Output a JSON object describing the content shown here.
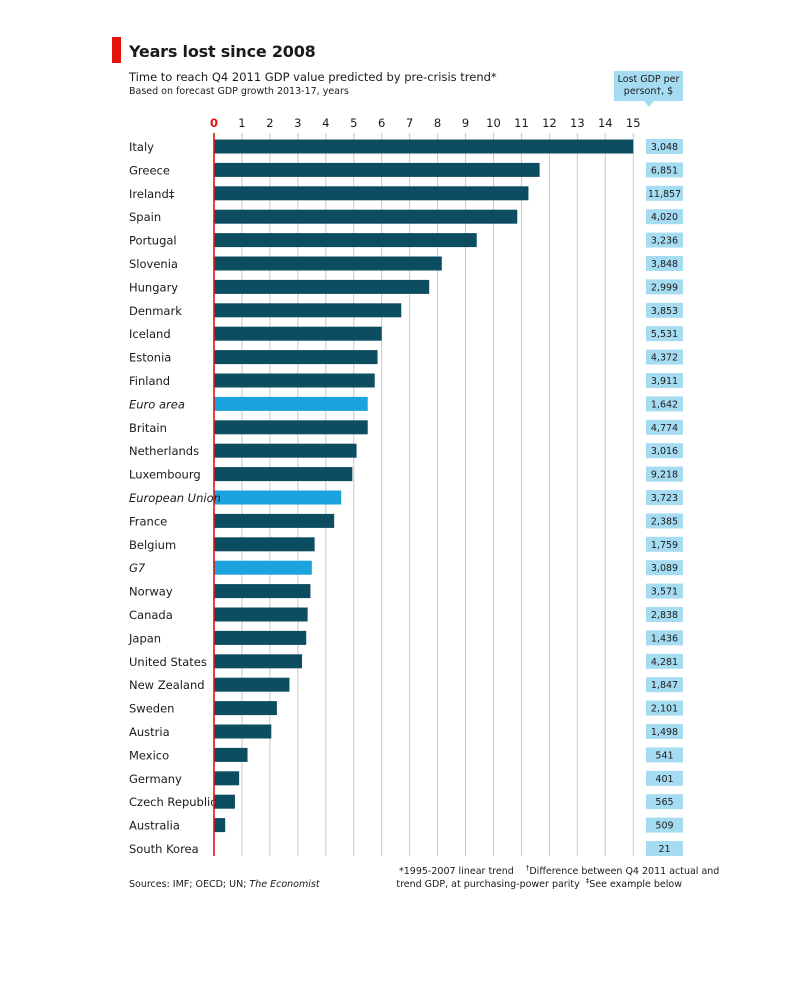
{
  "header": {
    "title": "Years lost since 2008",
    "subtitle": "Time to reach Q4 2011 GDP value predicted by pre-crisis trend*",
    "subtitle2": "Based on forecast GDP growth 2013-17, years",
    "lost_gdp_label_line1": "Lost GDP per",
    "lost_gdp_label_line2": "person†, $"
  },
  "footer": {
    "footnote_star": "*1995-2007 linear trend",
    "footnote_dagger_mark": "†",
    "footnote_dagger_1": "Difference between Q4 2011 actual and",
    "footnote_dagger_2": "trend GDP, at purchasing-power parity",
    "footnote_ddagger_mark": "‡",
    "footnote_ddagger": "See example below",
    "sources_prefix": "Sources: IMF; OECD; UN; ",
    "sources_italic": "The Economist"
  },
  "colors": {
    "bar_country": "#0d4d62",
    "bar_aggregate": "#1ba3dd",
    "value_box": "#a6dcf2",
    "zero_line": "#e3120b",
    "grid": "#c8c8c8",
    "accent": "#e3120b"
  },
  "chart_data": {
    "type": "bar",
    "orientation": "horizontal",
    "xlim": [
      0,
      15
    ],
    "xticks": [
      0,
      1,
      2,
      3,
      4,
      5,
      6,
      7,
      8,
      9,
      10,
      11,
      12,
      13,
      14,
      15
    ],
    "grid": true,
    "categories": [
      {
        "label": "Italy",
        "years": 15.0,
        "lost_gdp": "3,048",
        "italic": false
      },
      {
        "label": "Greece",
        "years": 11.65,
        "lost_gdp": "6,851",
        "italic": false
      },
      {
        "label": "Ireland‡",
        "years": 11.25,
        "lost_gdp": "11,857",
        "italic": false
      },
      {
        "label": "Spain",
        "years": 10.85,
        "lost_gdp": "4,020",
        "italic": false
      },
      {
        "label": "Portugal",
        "years": 9.4,
        "lost_gdp": "3,236",
        "italic": false
      },
      {
        "label": "Slovenia",
        "years": 8.15,
        "lost_gdp": "3,848",
        "italic": false
      },
      {
        "label": "Hungary",
        "years": 7.7,
        "lost_gdp": "2,999",
        "italic": false
      },
      {
        "label": "Denmark",
        "years": 6.7,
        "lost_gdp": "3,853",
        "italic": false
      },
      {
        "label": "Iceland",
        "years": 6.0,
        "lost_gdp": "5,531",
        "italic": false
      },
      {
        "label": "Estonia",
        "years": 5.85,
        "lost_gdp": "4,372",
        "italic": false
      },
      {
        "label": "Finland",
        "years": 5.75,
        "lost_gdp": "3,911",
        "italic": false
      },
      {
        "label": "Euro area",
        "years": 5.5,
        "lost_gdp": "1,642",
        "italic": true
      },
      {
        "label": "Britain",
        "years": 5.5,
        "lost_gdp": "4,774",
        "italic": false
      },
      {
        "label": "Netherlands",
        "years": 5.1,
        "lost_gdp": "3,016",
        "italic": false
      },
      {
        "label": "Luxembourg",
        "years": 4.95,
        "lost_gdp": "9,218",
        "italic": false
      },
      {
        "label": "European Union",
        "years": 4.55,
        "lost_gdp": "3,723",
        "italic": true
      },
      {
        "label": "France",
        "years": 4.3,
        "lost_gdp": "2,385",
        "italic": false
      },
      {
        "label": "Belgium",
        "years": 3.6,
        "lost_gdp": "1,759",
        "italic": false
      },
      {
        "label": "G7",
        "years": 3.5,
        "lost_gdp": "3,089",
        "italic": true
      },
      {
        "label": "Norway",
        "years": 3.45,
        "lost_gdp": "3,571",
        "italic": false
      },
      {
        "label": "Canada",
        "years": 3.35,
        "lost_gdp": "2,838",
        "italic": false
      },
      {
        "label": "Japan",
        "years": 3.3,
        "lost_gdp": "1,436",
        "italic": false
      },
      {
        "label": "United States",
        "years": 3.15,
        "lost_gdp": "4,281",
        "italic": false
      },
      {
        "label": "New Zealand",
        "years": 2.7,
        "lost_gdp": "1,847",
        "italic": false
      },
      {
        "label": "Sweden",
        "years": 2.25,
        "lost_gdp": "2,101",
        "italic": false
      },
      {
        "label": "Austria",
        "years": 2.05,
        "lost_gdp": "1,498",
        "italic": false
      },
      {
        "label": "Mexico",
        "years": 1.2,
        "lost_gdp": "541",
        "italic": false
      },
      {
        "label": "Germany",
        "years": 0.9,
        "lost_gdp": "401",
        "italic": false
      },
      {
        "label": "Czech Republic",
        "years": 0.75,
        "lost_gdp": "565",
        "italic": false
      },
      {
        "label": "Australia",
        "years": 0.4,
        "lost_gdp": "509",
        "italic": false
      },
      {
        "label": "South Korea",
        "years": 0.0,
        "lost_gdp": "21",
        "italic": false
      }
    ]
  }
}
